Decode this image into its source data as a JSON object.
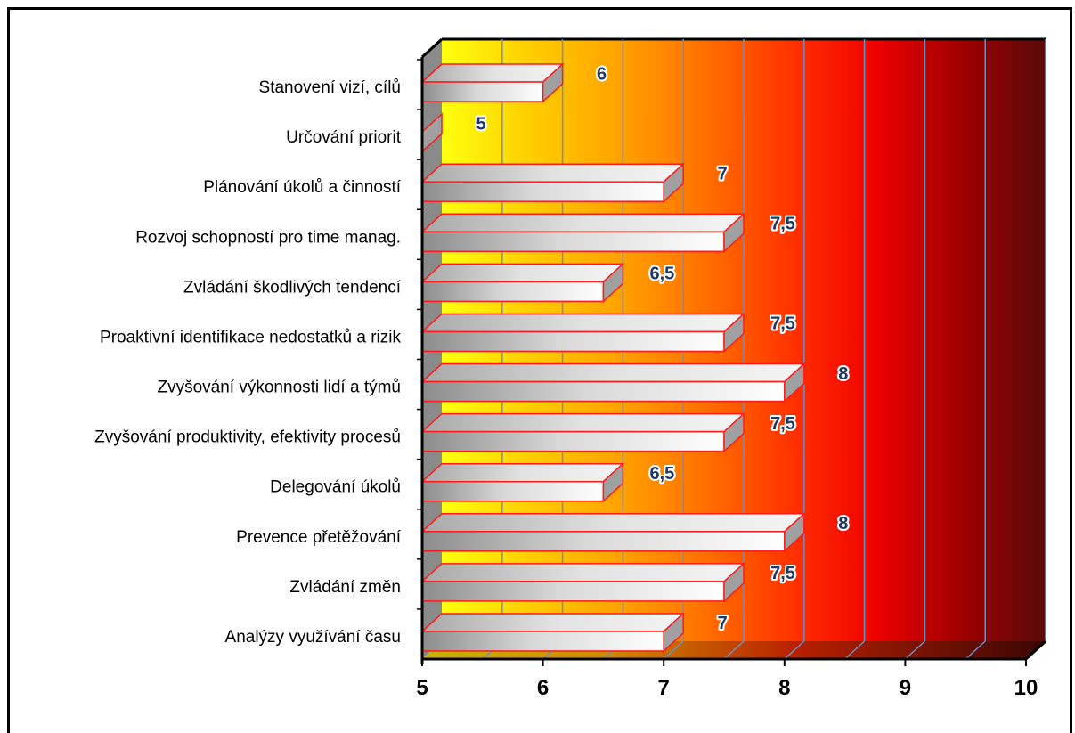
{
  "chart_data": {
    "type": "bar",
    "orientation": "horizontal",
    "three_d": true,
    "categories": [
      "Stanovení vizí, cílů",
      "Určování priorit",
      "Plánování úkolů a činností",
      "Rozvoj schopností pro time manag.",
      "Zvládání škodlivých tendencí",
      "Proaktivní identifikace nedostatků a rizik",
      "Zvyšování výkonnosti lidí a týmů",
      "Zvyšování produktivity, efektivity procesů",
      "Delegování úkolů",
      "Prevence přetěžování",
      "Zvládání změn",
      "Analýzy využívání času"
    ],
    "values": [
      6,
      5,
      7,
      7.5,
      6.5,
      7.5,
      8,
      7.5,
      6.5,
      8,
      7.5,
      7
    ],
    "value_labels": [
      "6",
      "5",
      "7",
      "7,5",
      "6,5",
      "7,5",
      "8",
      "7,5",
      "6,5",
      "8",
      "7,5",
      "7"
    ],
    "x_ticks": [
      "5",
      "6",
      "7",
      "8",
      "9",
      "10"
    ],
    "xlim": [
      5,
      10
    ],
    "grid": true,
    "background": "gradient yellow-to-dark-red",
    "colors": {
      "bar_border": "#ff1a1a",
      "bar_fill_light": "#ffffff",
      "bar_fill_dark": "#8c8c8c",
      "value_label": "#1f3864",
      "value_label_outline": "#ffffff",
      "gradient_start": "#ffff00",
      "gradient_mid1": "#ffb400",
      "gradient_mid2": "#ff5000",
      "gradient_mid3": "#ee0000",
      "gradient_end": "#5a0a0a"
    }
  }
}
